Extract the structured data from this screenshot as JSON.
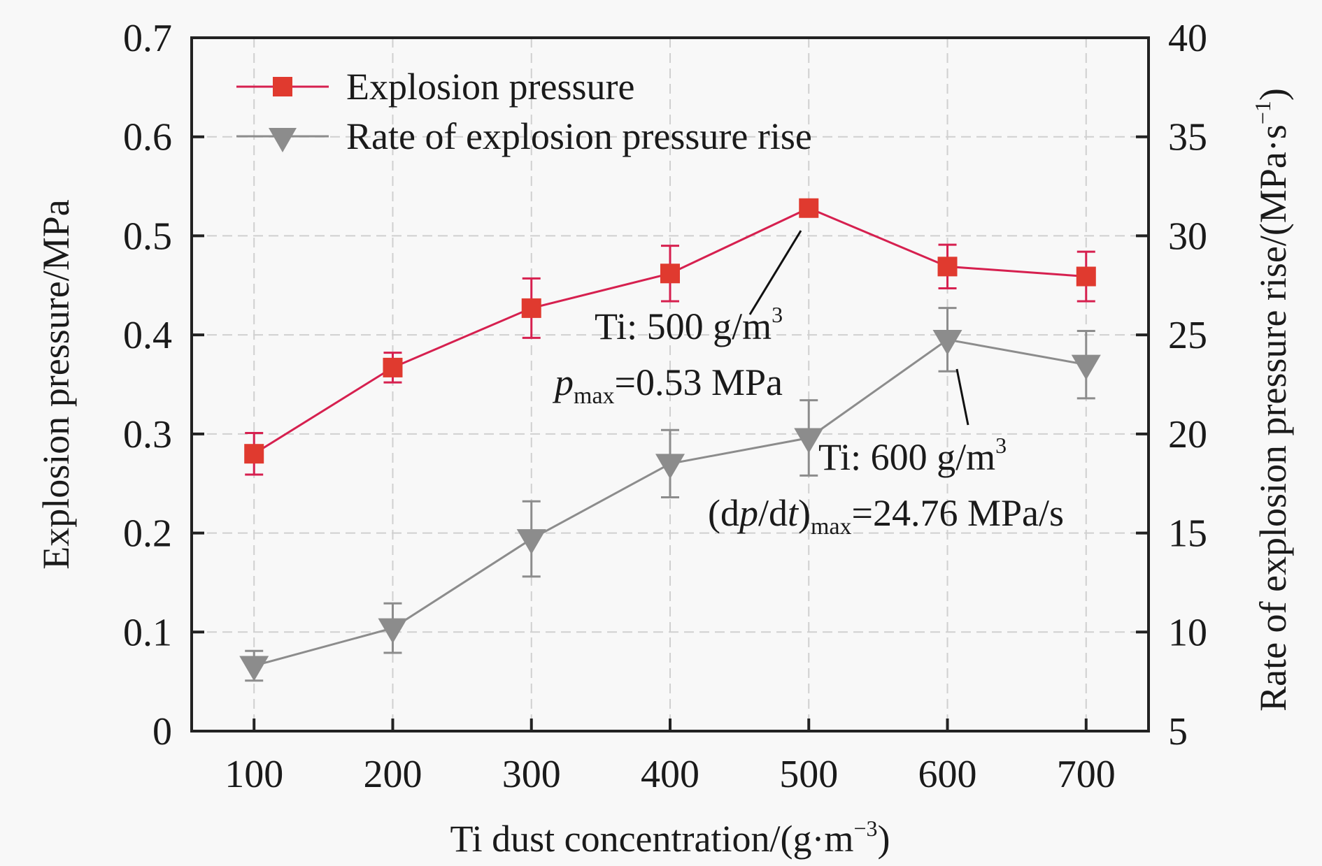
{
  "chart_data": {
    "type": "line",
    "title": "",
    "xlabel": "Ti dust concentration/(g·m",
    "xlabel_sup": "−3",
    "xlabel_end": ")",
    "ylabel": "Explosion pressure/MPa",
    "y2label": "Rate of explosion pressure rise/(MPa·s",
    "y2label_sup": "−1",
    "y2label_end": ")",
    "x": [
      100,
      200,
      300,
      400,
      500,
      600,
      700
    ],
    "x_tick_labels": [
      "100",
      "200",
      "300",
      "400",
      "500",
      "600",
      "700"
    ],
    "xlim": [
      55,
      745
    ],
    "ylim": [
      0,
      0.7
    ],
    "y_ticks": [
      0,
      0.1,
      0.2,
      0.3,
      0.4,
      0.5,
      0.6,
      0.7
    ],
    "y_tick_labels": [
      "0",
      "0.1",
      "0.2",
      "0.3",
      "0.4",
      "0.5",
      "0.6",
      "0.7"
    ],
    "y2lim": [
      5,
      40
    ],
    "y2_ticks": [
      5,
      10,
      15,
      20,
      25,
      30,
      35,
      40
    ],
    "y2_tick_labels": [
      "5",
      "10",
      "15",
      "20",
      "25",
      "30",
      "35",
      "40"
    ],
    "grid": true,
    "legend_position": "top-left",
    "series": [
      {
        "name": "Explosion pressure",
        "axis": "left",
        "marker": "square",
        "color": "#e03a2f",
        "line_color": "#d6204f",
        "values": [
          0.28,
          0.367,
          0.427,
          0.462,
          0.528,
          0.469,
          0.459
        ],
        "errors": [
          0.021,
          0.015,
          0.03,
          0.028,
          0.0,
          0.022,
          0.025
        ]
      },
      {
        "name": "Rate of explosion pressure rise",
        "axis": "right",
        "marker": "triangle-down",
        "color": "#8c8c8c",
        "line_color": "#8c8c8c",
        "values": [
          8.3,
          10.2,
          14.7,
          18.5,
          19.8,
          24.76,
          23.5
        ],
        "errors": [
          0.75,
          1.25,
          1.9,
          1.7,
          1.9,
          1.6,
          1.7
        ]
      }
    ],
    "annotations": [
      {
        "line1": "Ti: 500 g/m",
        "line1_sup": "3",
        "line2_var": "p",
        "line2_sub": "max",
        "line2_rest": "=0.53 MPa",
        "points_to": {
          "x": 500,
          "series": "Explosion pressure"
        }
      },
      {
        "line1": "Ti: 600 g/m",
        "line1_sup": "3",
        "line2_pre": "(d",
        "line2_var1": "p",
        "line2_mid": "/d",
        "line2_var2": "t",
        "line2_close": ")",
        "line2_sub": "max",
        "line2_rest": "=24.76 MPa/s",
        "points_to": {
          "x": 600,
          "series": "Rate of explosion pressure rise"
        }
      }
    ]
  }
}
